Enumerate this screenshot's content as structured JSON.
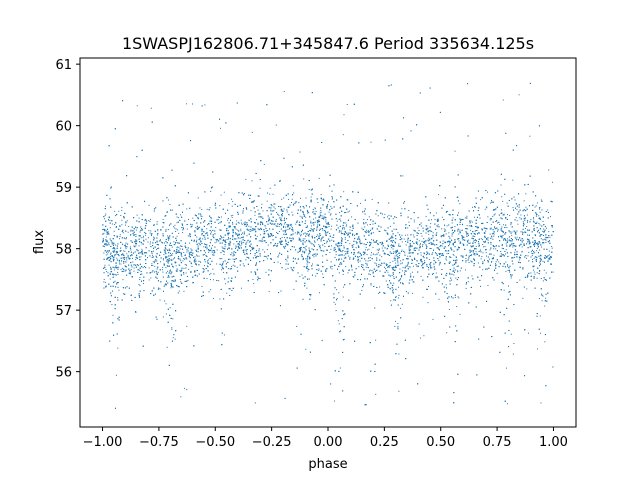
{
  "chart_data": {
    "type": "scatter",
    "title": "1SWASPJ162806.71+345847.6 Period 335634.125s",
    "xlabel": "phase",
    "ylabel": "flux",
    "xlim": [
      -1.1,
      1.1
    ],
    "ylim": [
      55.1,
      61.1
    ],
    "xticks": [
      -1.0,
      -0.75,
      -0.5,
      -0.25,
      0.0,
      0.25,
      0.5,
      0.75,
      1.0
    ],
    "xtick_labels": [
      "−1.00",
      "−0.75",
      "−0.50",
      "−0.25",
      "0.00",
      "0.25",
      "0.50",
      "0.75",
      "1.00"
    ],
    "yticks": [
      56,
      57,
      58,
      59,
      60,
      61
    ],
    "ytick_labels": [
      "56",
      "57",
      "58",
      "59",
      "60",
      "61"
    ],
    "grid": false,
    "marker_color": "#1f77b4",
    "series": [
      {
        "x_range": [
          -1.0,
          1.0
        ],
        "trend": {
          "x": [
            -1.0,
            -0.75,
            -0.5,
            -0.25,
            0.0,
            0.25,
            0.5,
            0.75,
            1.0
          ],
          "y": [
            58.0,
            57.9,
            58.1,
            58.3,
            58.2,
            57.9,
            58.0,
            58.2,
            58.1
          ]
        },
        "core_spread": 0.35,
        "y_range": [
          55.4,
          60.7
        ],
        "dips_x": [
          -0.95,
          -0.7,
          -0.45,
          -0.1,
          0.05,
          0.3,
          0.55,
          0.8,
          0.95
        ]
      }
    ]
  }
}
